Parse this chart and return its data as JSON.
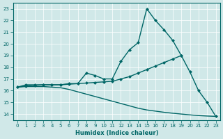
{
  "xlabel": "Humidex (Indice chaleur)",
  "bg_color": "#d0e8e8",
  "grid_color": "#ffffff",
  "line_color": "#006666",
  "xlim": [
    -0.5,
    23.5
  ],
  "ylim": [
    13.5,
    23.5
  ],
  "x_top": [
    0,
    1,
    2,
    3,
    4,
    5,
    6,
    7,
    8,
    9,
    10,
    11,
    12,
    13,
    14,
    15,
    16,
    17,
    18,
    19
  ],
  "y_top": [
    16.3,
    16.5,
    16.5,
    16.5,
    16.5,
    16.5,
    16.6,
    16.6,
    17.5,
    17.3,
    17.0,
    17.0,
    18.5,
    19.5,
    20.1,
    23.0,
    22.0,
    21.2,
    20.3,
    19.0
  ],
  "x_mid": [
    0,
    1,
    2,
    3,
    4,
    5,
    6,
    7,
    8,
    9,
    10,
    11,
    12,
    13,
    14,
    15,
    16,
    17,
    18,
    19,
    20,
    21,
    22,
    23
  ],
  "y_mid": [
    16.3,
    16.4,
    16.45,
    16.5,
    16.5,
    16.5,
    16.55,
    16.6,
    16.65,
    16.7,
    16.75,
    16.8,
    17.0,
    17.2,
    17.5,
    17.8,
    18.1,
    18.4,
    18.7,
    19.0,
    17.6,
    16.0,
    15.0,
    13.8
  ],
  "x_bot": [
    0,
    1,
    2,
    3,
    4,
    5,
    6,
    7,
    8,
    9,
    10,
    11,
    12,
    13,
    14,
    15,
    16,
    17,
    18,
    19,
    20,
    21,
    22,
    23
  ],
  "y_bot": [
    16.3,
    16.35,
    16.35,
    16.35,
    16.3,
    16.25,
    16.1,
    15.9,
    15.7,
    15.5,
    15.3,
    15.1,
    14.9,
    14.7,
    14.5,
    14.35,
    14.25,
    14.15,
    14.07,
    14.0,
    13.93,
    13.87,
    13.83,
    13.8
  ]
}
